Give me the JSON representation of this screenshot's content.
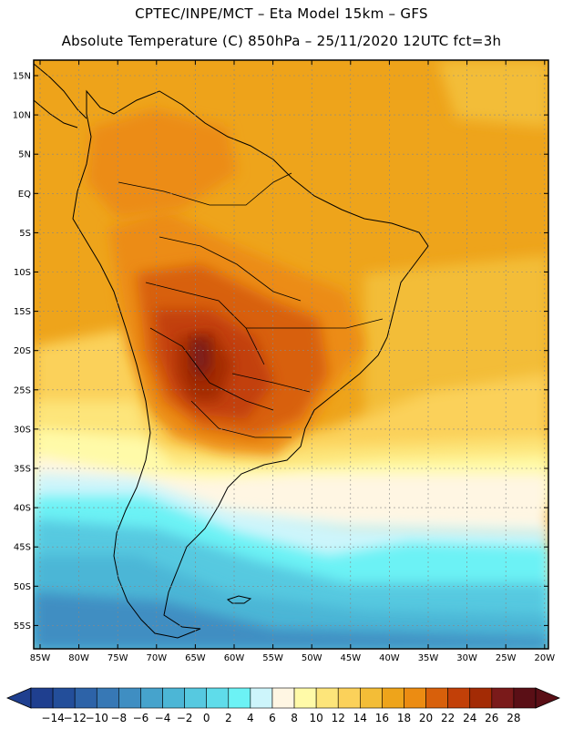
{
  "header": {
    "title_line1": "CPTEC/INPE/MCT –  Eta Model 15km – GFS",
    "title_line2": "Absolute Temperature (C) 850hPa – 25/11/2020 12UTC fct=3h"
  },
  "axes": {
    "lat_labels": [
      "15N",
      "10N",
      "5N",
      "EQ",
      "5S",
      "10S",
      "15S",
      "20S",
      "25S",
      "30S",
      "35S",
      "40S",
      "45S",
      "50S",
      "55S"
    ],
    "lon_labels": [
      "85W",
      "80W",
      "75W",
      "70W",
      "65W",
      "60W",
      "55W",
      "50W",
      "45W",
      "40W",
      "35W",
      "30W",
      "25W",
      "20W"
    ]
  },
  "colorbar": {
    "ticks": [
      "-14",
      "-12",
      "-10",
      "-8",
      "-6",
      "-4",
      "-2",
      "0",
      "2",
      "4",
      "6",
      "8",
      "10",
      "12",
      "14",
      "16",
      "18",
      "20",
      "22",
      "24",
      "26",
      "28"
    ],
    "colors": [
      "#1f3f8f",
      "#234e9a",
      "#2d63a8",
      "#3778b5",
      "#3f8ec2",
      "#46a3cc",
      "#4cb6d6",
      "#56c9e0",
      "#5fdcea",
      "#6cf2f5",
      "#cdf5fb",
      "#fff6e3",
      "#fffaa8",
      "#fde57a",
      "#fbd15a",
      "#f3bd37",
      "#eea41b",
      "#ec8c12",
      "#d8600b",
      "#c24008",
      "#a32b05",
      "#7a1a1a",
      "#5a0f16"
    ]
  },
  "legend_colors": {
    "frame": "#000000",
    "grid": "#888888",
    "coast": "#000000"
  }
}
